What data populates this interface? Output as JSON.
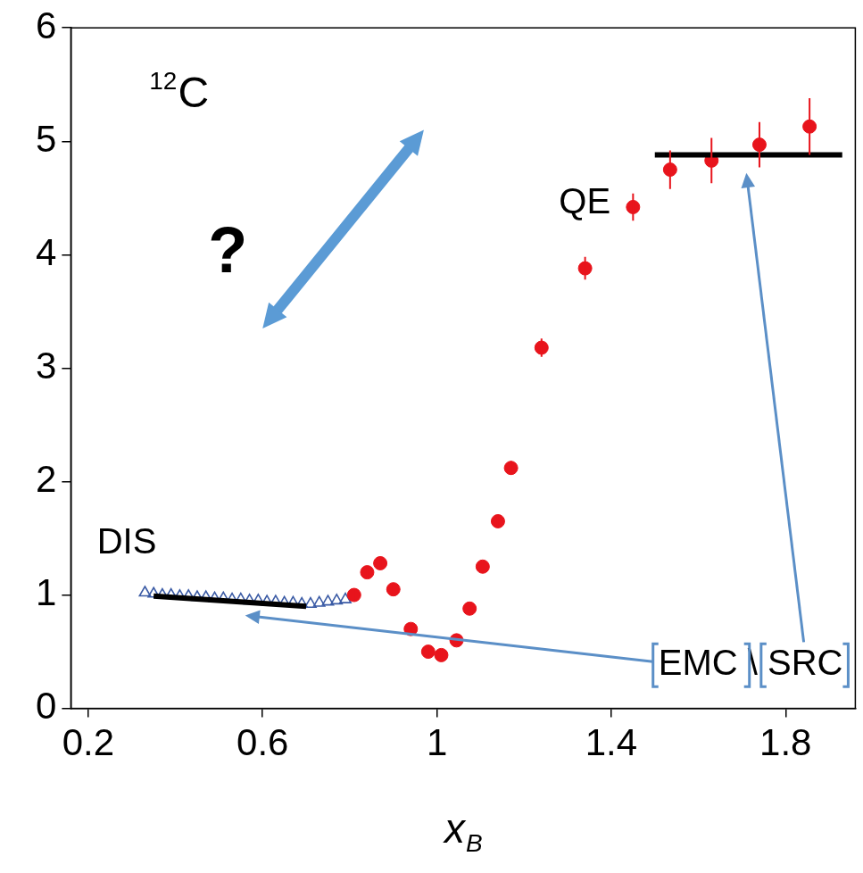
{
  "chart_data": {
    "type": "scatter",
    "title": {
      "superscript": "12",
      "text": "C"
    },
    "x_label": {
      "text": "x",
      "subscript": "B"
    },
    "xlim": [
      0.16,
      1.96
    ],
    "xticks": [
      0.2,
      0.6,
      1,
      1.4,
      1.8
    ],
    "ylim": [
      0,
      6
    ],
    "yticks": [
      0,
      1,
      2,
      3,
      4,
      5,
      6
    ],
    "grid": false,
    "annotations": [
      "QE",
      "DIS",
      "?",
      "EMC \\ SRC"
    ],
    "series": [
      {
        "type": "scatter",
        "color": "#e8141c",
        "marker": "circle",
        "x": [
          0.81,
          0.84,
          0.87,
          0.9,
          0.94,
          0.98,
          1.01,
          1.045,
          1.075,
          1.105,
          1.14,
          1.17,
          1.24,
          1.34,
          1.45,
          1.535,
          1.63,
          1.74,
          1.855
        ],
        "values": [
          1.0,
          1.2,
          1.28,
          1.05,
          0.7,
          0.5,
          0.47,
          0.6,
          0.88,
          1.25,
          1.65,
          2.12,
          3.18,
          3.88,
          4.42,
          4.75,
          4.83,
          4.97,
          5.13
        ],
        "errors": [
          0.04,
          0.04,
          0.04,
          0.04,
          0.04,
          0.04,
          0.04,
          0.04,
          0.04,
          0.05,
          0.05,
          0.06,
          0.08,
          0.1,
          0.12,
          0.17,
          0.2,
          0.2,
          0.25
        ]
      },
      {
        "type": "scatter",
        "color": "#3b5ba5",
        "marker": "triangle",
        "x": [
          0.33,
          0.35,
          0.37,
          0.39,
          0.41,
          0.43,
          0.45,
          0.47,
          0.49,
          0.51,
          0.53,
          0.55,
          0.57,
          0.59,
          0.61,
          0.63,
          0.65,
          0.67,
          0.69,
          0.71,
          0.73,
          0.75,
          0.77,
          0.79
        ],
        "values": [
          1.02,
          1.01,
          1.0,
          1.0,
          0.99,
          0.99,
          0.98,
          0.98,
          0.97,
          0.97,
          0.96,
          0.96,
          0.95,
          0.95,
          0.94,
          0.94,
          0.93,
          0.93,
          0.92,
          0.92,
          0.93,
          0.94,
          0.95,
          0.96
        ]
      },
      {
        "type": "line",
        "color": "#000000",
        "line_style": "solid",
        "x": [
          0.35,
          0.7
        ],
        "values": [
          0.99,
          0.9
        ]
      },
      {
        "type": "line",
        "color": "#000000",
        "line_style": "solid",
        "x": [
          1.5,
          1.93
        ],
        "values": [
          4.88,
          4.88
        ]
      }
    ]
  }
}
